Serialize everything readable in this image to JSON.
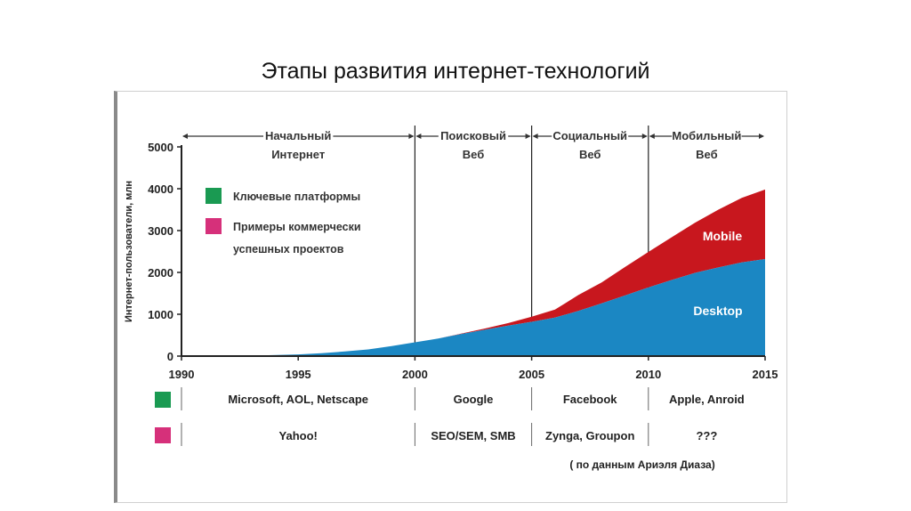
{
  "title": "Этапы развития интернет-технологий",
  "colors": {
    "desktop": "#1b87c3",
    "mobile": "#c8171e",
    "platforms": "#1a9a52",
    "commercial": "#d6307a"
  },
  "chart_data": {
    "type": "area",
    "stacked": true,
    "ylabel": "Интернет-пользователи, млн",
    "ylim": [
      0,
      5000
    ],
    "yticks": [
      0,
      1000,
      2000,
      3000,
      4000,
      5000
    ],
    "xlim": [
      1990,
      2015
    ],
    "xticks": [
      1990,
      1995,
      2000,
      2005,
      2010,
      2015
    ],
    "grid": false,
    "x": [
      1990,
      1993,
      1995,
      1996,
      1997,
      1998,
      1999,
      2000,
      2001,
      2002,
      2003,
      2004,
      2005,
      2006,
      2007,
      2008,
      2009,
      2010,
      2011,
      2012,
      2013,
      2014,
      2015
    ],
    "series": [
      {
        "name": "Desktop",
        "values": [
          0,
          10,
          40,
          70,
          110,
          160,
          240,
          330,
          420,
          530,
          630,
          730,
          820,
          920,
          1080,
          1260,
          1450,
          1640,
          1820,
          1990,
          2120,
          2240,
          2320
        ]
      },
      {
        "name": "Mobile",
        "values": [
          0,
          0,
          0,
          0,
          0,
          0,
          0,
          0,
          0,
          10,
          30,
          60,
          120,
          190,
          380,
          500,
          680,
          850,
          1020,
          1200,
          1380,
          1540,
          1660
        ]
      }
    ],
    "eras": [
      {
        "label_line1": "Начальный",
        "label_line2": "Интернет",
        "from": 1990,
        "to": 2000
      },
      {
        "label_line1": "Поисковый",
        "label_line2": "Веб",
        "from": 2000,
        "to": 2005
      },
      {
        "label_line1": "Социальный",
        "label_line2": "Веб",
        "from": 2005,
        "to": 2010
      },
      {
        "label_line1": "Мобильный",
        "label_line2": "Веб",
        "from": 2010,
        "to": 2015
      }
    ],
    "legend": {
      "platforms": "Ключевые платформы",
      "commercial_line1": "Примеры коммерчески",
      "commercial_line2": "успешных проектов"
    },
    "platforms_row": [
      "Microsoft, AOL, Netscape",
      "Google",
      "Facebook",
      "Apple, Anroid"
    ],
    "commercial_row": [
      "Yahoo!",
      "SEO/SEM, SMB",
      "Zynga, Groupon",
      "???"
    ],
    "source_note": "( по данным Ариэля Диаза)"
  }
}
